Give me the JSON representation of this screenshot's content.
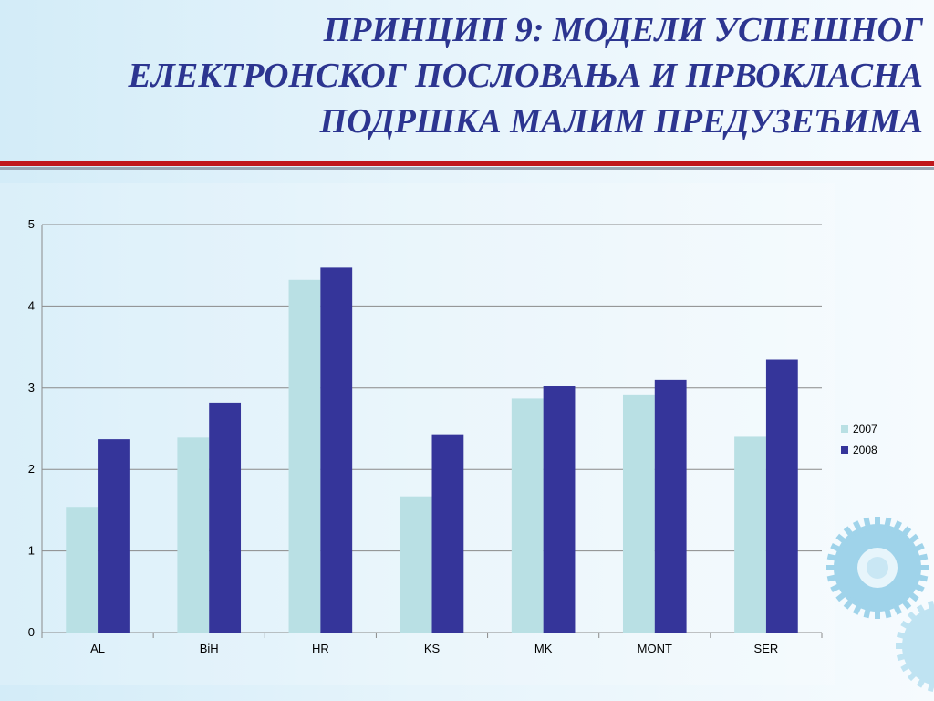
{
  "slide": {
    "title_lines": [
      "ПРИНЦИП 9: МОДЕЛИ УСПЕШНОГ",
      "ЕЛЕКТРОНСКОГ ПОСЛОВАЊА И ПРВОКЛАСНА",
      "ПОДРШКА МАЛИМ ПРЕДУЗЕЋИМА"
    ]
  },
  "colors": {
    "title": "#2c3590",
    "accent_rule": "#c0171c",
    "series_2007": "#b9e0e4",
    "series_2008": "#35359a",
    "gear": "#9fd3ea"
  },
  "chart_data": {
    "type": "bar",
    "categories": [
      "AL",
      "BiH",
      "HR",
      "KS",
      "MK",
      "MONT",
      "SER"
    ],
    "series": [
      {
        "name": "2007",
        "values": [
          1.53,
          2.39,
          4.32,
          1.67,
          2.87,
          2.91,
          2.4
        ]
      },
      {
        "name": "2008",
        "values": [
          2.37,
          2.82,
          4.47,
          2.42,
          3.02,
          3.1,
          3.35
        ]
      }
    ],
    "ylim": [
      0,
      5
    ],
    "yticks": [
      "0",
      "1",
      "2",
      "3",
      "4",
      "5"
    ],
    "grid": true,
    "legend_position": "right"
  }
}
